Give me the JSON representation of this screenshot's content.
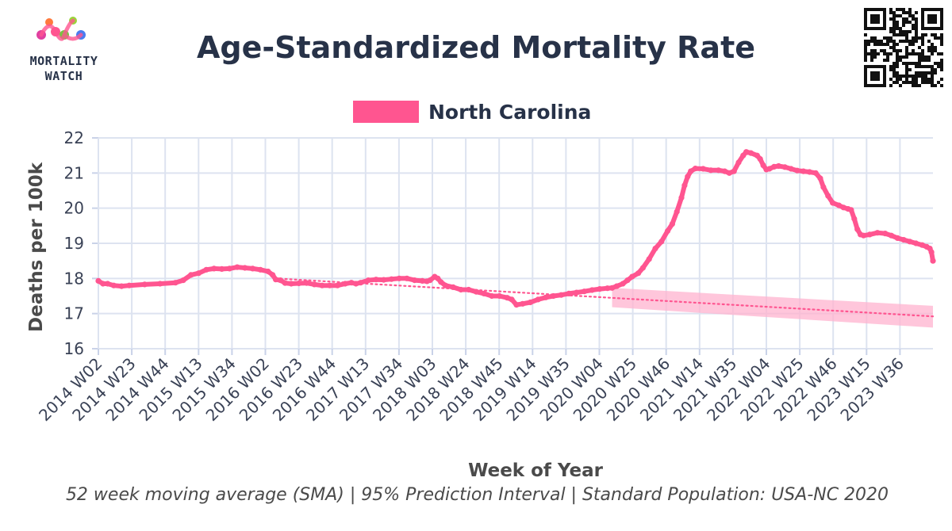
{
  "brand": {
    "line1": "MORTALITY",
    "line2": "WATCH"
  },
  "colors": {
    "series": "#ff5590",
    "band": "#ffb3cf",
    "grid": "#dde3f0",
    "axis": "#c9d2e8",
    "text": "#273248"
  },
  "footer": "52 week moving average (SMA) | 95% Prediction Interval | Standard Population: USA-NC 2020",
  "chart_data": {
    "type": "line",
    "title": "Age-Standardized Mortality Rate",
    "xlabel": "Week of Year",
    "ylabel": "Deaths per 100k",
    "ylim": [
      16,
      22
    ],
    "yticks": [
      16,
      17,
      18,
      19,
      20,
      21,
      22
    ],
    "grid": true,
    "legend_placement": "top",
    "x_tick_labels": [
      "2014 W02",
      "2014 W23",
      "2014 W44",
      "2015 W13",
      "2015 W34",
      "2016 W02",
      "2016 W23",
      "2016 W44",
      "2017 W13",
      "2017 W34",
      "2018 W03",
      "2018 W24",
      "2018 W45",
      "2019 W14",
      "2019 W35",
      "2020 W04",
      "2020 W25",
      "2020 W46",
      "2021 W14",
      "2021 W35",
      "2022 W04",
      "2022 W25",
      "2022 W46",
      "2023 W15",
      "2023 W36"
    ],
    "series": [
      {
        "name": "North Carolina",
        "points": [
          [
            0,
            17.93
          ],
          [
            3,
            17.85
          ],
          [
            6,
            17.85
          ],
          [
            10,
            17.8
          ],
          [
            15,
            17.78
          ],
          [
            20,
            17.8
          ],
          [
            30,
            17.83
          ],
          [
            40,
            17.85
          ],
          [
            50,
            17.88
          ],
          [
            55,
            17.95
          ],
          [
            60,
            18.1
          ],
          [
            65,
            18.15
          ],
          [
            70,
            18.25
          ],
          [
            75,
            18.28
          ],
          [
            80,
            18.27
          ],
          [
            85,
            18.28
          ],
          [
            90,
            18.32
          ],
          [
            95,
            18.3
          ],
          [
            100,
            18.28
          ],
          [
            105,
            18.25
          ],
          [
            110,
            18.2
          ],
          [
            113,
            18.1
          ],
          [
            115,
            17.97
          ],
          [
            118,
            17.95
          ],
          [
            121,
            17.87
          ],
          [
            125,
            17.85
          ],
          [
            130,
            17.86
          ],
          [
            135,
            17.87
          ],
          [
            140,
            17.83
          ],
          [
            145,
            17.8
          ],
          [
            150,
            17.8
          ],
          [
            155,
            17.8
          ],
          [
            160,
            17.85
          ],
          [
            164,
            17.88
          ],
          [
            167,
            17.85
          ],
          [
            170,
            17.88
          ],
          [
            175,
            17.95
          ],
          [
            180,
            17.97
          ],
          [
            185,
            17.96
          ],
          [
            190,
            17.98
          ],
          [
            195,
            18.0
          ],
          [
            200,
            18.0
          ],
          [
            205,
            17.95
          ],
          [
            210,
            17.93
          ],
          [
            213,
            17.92
          ],
          [
            215,
            17.95
          ],
          [
            218,
            18.05
          ],
          [
            220,
            18.0
          ],
          [
            222,
            17.9
          ],
          [
            225,
            17.8
          ],
          [
            230,
            17.75
          ],
          [
            235,
            17.68
          ],
          [
            240,
            17.68
          ],
          [
            245,
            17.62
          ],
          [
            250,
            17.57
          ],
          [
            255,
            17.5
          ],
          [
            260,
            17.5
          ],
          [
            265,
            17.45
          ],
          [
            268,
            17.4
          ],
          [
            271,
            17.25
          ],
          [
            275,
            17.28
          ],
          [
            280,
            17.32
          ],
          [
            285,
            17.4
          ],
          [
            290,
            17.46
          ],
          [
            295,
            17.5
          ],
          [
            300,
            17.53
          ],
          [
            305,
            17.57
          ],
          [
            310,
            17.6
          ],
          [
            315,
            17.63
          ],
          [
            320,
            17.67
          ],
          [
            325,
            17.7
          ],
          [
            330,
            17.72
          ],
          [
            333,
            17.73
          ],
          [
            336,
            17.78
          ],
          [
            340,
            17.85
          ],
          [
            343,
            17.95
          ],
          [
            346,
            18.05
          ],
          [
            350,
            18.15
          ],
          [
            353,
            18.3
          ],
          [
            357,
            18.55
          ],
          [
            361,
            18.85
          ],
          [
            365,
            19.05
          ],
          [
            369,
            19.35
          ],
          [
            372,
            19.55
          ],
          [
            375,
            19.9
          ],
          [
            378,
            20.3
          ],
          [
            380,
            20.65
          ],
          [
            382,
            20.9
          ],
          [
            384,
            21.05
          ],
          [
            387,
            21.13
          ],
          [
            392,
            21.12
          ],
          [
            397,
            21.08
          ],
          [
            402,
            21.08
          ],
          [
            406,
            21.05
          ],
          [
            409,
            21.0
          ],
          [
            412,
            21.05
          ],
          [
            415,
            21.3
          ],
          [
            418,
            21.5
          ],
          [
            420,
            21.6
          ],
          [
            423,
            21.57
          ],
          [
            427,
            21.5
          ],
          [
            429,
            21.4
          ],
          [
            431,
            21.22
          ],
          [
            433,
            21.1
          ],
          [
            435,
            21.12
          ],
          [
            438,
            21.18
          ],
          [
            441,
            21.2
          ],
          [
            445,
            21.17
          ],
          [
            449,
            21.12
          ],
          [
            453,
            21.07
          ],
          [
            457,
            21.05
          ],
          [
            461,
            21.03
          ],
          [
            465,
            21.0
          ],
          [
            468,
            20.85
          ],
          [
            470,
            20.6
          ],
          [
            473,
            20.35
          ],
          [
            476,
            20.15
          ],
          [
            480,
            20.08
          ],
          [
            483,
            20.02
          ],
          [
            486,
            19.98
          ],
          [
            488,
            19.95
          ],
          [
            490,
            19.7
          ],
          [
            492,
            19.4
          ],
          [
            494,
            19.25
          ],
          [
            496,
            19.22
          ],
          [
            500,
            19.25
          ],
          [
            505,
            19.3
          ],
          [
            510,
            19.28
          ],
          [
            514,
            19.22
          ],
          [
            518,
            19.15
          ],
          [
            522,
            19.1
          ],
          [
            526,
            19.05
          ],
          [
            530,
            19.0
          ],
          [
            534,
            18.95
          ],
          [
            537,
            18.9
          ],
          [
            539,
            18.85
          ],
          [
            540,
            18.75
          ],
          [
            541,
            18.5
          ]
        ]
      }
    ],
    "trend": [
      [
        115,
        18.0
      ],
      [
        541,
        16.92
      ]
    ],
    "prediction_interval": {
      "x_start": 333,
      "x_end": 541,
      "upper": [
        17.73,
        17.22
      ],
      "lower": [
        17.18,
        16.6
      ]
    }
  }
}
